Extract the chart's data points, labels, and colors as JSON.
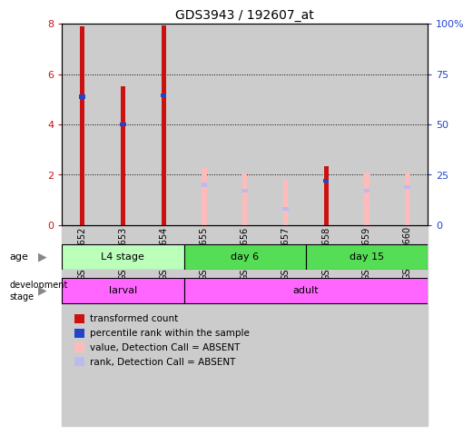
{
  "title": "GDS3943 / 192607_at",
  "samples": [
    "GSM542652",
    "GSM542653",
    "GSM542654",
    "GSM542655",
    "GSM542656",
    "GSM542657",
    "GSM542658",
    "GSM542659",
    "GSM542660"
  ],
  "transformed_count": [
    7.9,
    5.5,
    7.95,
    0,
    0,
    0,
    2.35,
    0,
    0
  ],
  "percentile_rank": [
    5.1,
    4.0,
    5.15,
    0,
    0,
    0,
    1.75,
    1.35,
    1.5
  ],
  "absent_value": [
    0,
    0,
    0,
    2.3,
    2.05,
    1.85,
    0,
    2.1,
    2.1
  ],
  "absent_rank": [
    0,
    0,
    0,
    1.6,
    1.35,
    0.65,
    0,
    1.35,
    1.5
  ],
  "ylim": [
    0,
    8
  ],
  "y2lim": [
    0,
    100
  ],
  "yticks": [
    0,
    2,
    4,
    6,
    8
  ],
  "y2ticks": [
    0,
    25,
    50,
    75,
    100
  ],
  "y2ticklabels": [
    "0",
    "25",
    "50",
    "75",
    "100%"
  ],
  "red_color": "#cc1111",
  "blue_color": "#2244cc",
  "pink_color": "#ffbbbb",
  "light_blue_color": "#bbbbee",
  "age_labels": [
    "L4 stage",
    "day 6",
    "day 15"
  ],
  "age_boundaries": [
    0,
    3,
    6,
    9
  ],
  "age_colors": [
    "#bbffbb",
    "#55dd55",
    "#55dd55"
  ],
  "dev_labels": [
    "larval",
    "adult"
  ],
  "dev_boundaries": [
    0,
    3,
    9
  ],
  "dev_color": "#ff66ff",
  "plot_bg": "#cccccc",
  "fig_bg": "#ffffff",
  "bar_width": 0.12,
  "blue_marker_size": 0.15
}
